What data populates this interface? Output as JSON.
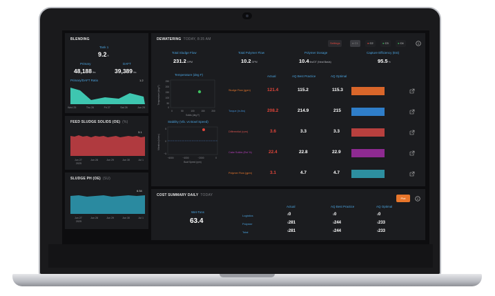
{
  "blending": {
    "title": "BLENDING",
    "tank_label": "Tank 1",
    "tank_value": "9.2",
    "tank_unit": "ft",
    "primary_label": "Primary",
    "primary_value": "48,188",
    "primary_unit": "lbs",
    "daft_label": "DAFT",
    "daft_value": "39,389",
    "daft_unit": "lbs",
    "ratio_label": "Primary/DAFT Ratio",
    "ratio_value": "1.2",
    "x_ticks": [
      "Wed 25",
      "Thu 26",
      "Fri 27",
      "Sat 28",
      "Jun 29"
    ]
  },
  "feed_solids": {
    "title": "FEED SLUDGE SOLIDS (OE)",
    "subtitle": "(%)",
    "value": "3.1",
    "x_ticks": [
      "Jun 27",
      "Jun 28",
      "Jun 29",
      "Jun 30",
      "Jul 1"
    ],
    "year": "2025"
  },
  "sludge_ph": {
    "title": "SLUDGE PH (OE)",
    "subtitle": "(SU)",
    "value": "6.54",
    "x_ticks": [
      "Jun 27",
      "Jun 28",
      "Jun 29",
      "Jun 30",
      "Jul 1"
    ],
    "year": "2025"
  },
  "dewatering": {
    "title": "DEWATERING",
    "subtitle": "TODAY, 8:35 AM",
    "settings_label": "Settings",
    "centrifuges": [
      "C1",
      "C2",
      "C3",
      "C4"
    ],
    "metrics": [
      {
        "label": "Total Sludge Flow",
        "value": "231.2",
        "unit": "GPM"
      },
      {
        "label": "Total Polymer Flow",
        "value": "10.2",
        "unit": "GPM"
      },
      {
        "label": "Polymer Dosage",
        "value": "10.4",
        "unit": "lbs/DT (Neat Basis)"
      },
      {
        "label": "Capture Efficiency (Est)",
        "value": "95.5",
        "unit": "%"
      }
    ],
    "temp_chart_title": "Temperature (deg F)",
    "temp_ylabel": "Temperature (deg F)",
    "temp_xlabel": "Solids (deg F)",
    "temp_x_ticks": [
      "0",
      "50",
      "100",
      "150",
      "200"
    ],
    "temp_y_ticks": [
      "250",
      "200",
      "150",
      "100",
      "50",
      "0"
    ],
    "stab_chart_title": "Stability (Vib. vs Bowl Speed)",
    "stab_ylabel": "Vibration (in/sec)",
    "stab_xlabel": "Bowl Speed (rpm)",
    "stab_x_ticks": [
      "−6000",
      "−4000",
      "−2000",
      "0"
    ],
    "stab_y_ticks": [
      "5",
      "0",
      "−5"
    ],
    "col_actual": "Actual",
    "col_best": "AQ Best Practice",
    "col_optimal": "AQ Optimal",
    "rows": [
      {
        "label": "Sludge Flow (gpm)",
        "label_color": "#e8762b",
        "actual": "121.4",
        "best": "115.2",
        "optimal": "115.3",
        "bar_color": "#d9662a"
      },
      {
        "label": "Torque (in-lbs)",
        "label_color": "#3f8fd6",
        "actual": "208.2",
        "best": "214.9",
        "optimal": "215",
        "bar_color": "#2f7ec9"
      },
      {
        "label": "Differential (rpm)",
        "label_color": "#d9534f",
        "actual": "3.6",
        "best": "3.3",
        "optimal": "3.3",
        "bar_color": "#b8403e"
      },
      {
        "label": "Cake Solids (Est %)",
        "label_color": "#b43fb9",
        "actual": "22.4",
        "best": "22.8",
        "optimal": "22.9",
        "bar_color": "#8e2a91"
      },
      {
        "label": "Polymer Flow (gpm)",
        "label_color": "#e8762b",
        "actual": "3.1",
        "best": "4.7",
        "optimal": "4.7",
        "bar_color": "#2d8fa0"
      }
    ]
  },
  "cost": {
    "title": "COST SUMMARY DAILY",
    "subtitle": "TODAY",
    "plot_label": "Plot",
    "wet_tons_label": "Wet-Tons",
    "wet_tons_value": "63.4",
    "col_actual": "Actual",
    "col_best": "AQ Best Practice",
    "col_optimal": "AQ Optimal",
    "rows": [
      {
        "label": "Logistics",
        "actual": "0",
        "best": "0",
        "optimal": "0"
      },
      {
        "label": "Polymer",
        "actual": "281",
        "best": "244",
        "optimal": "233"
      },
      {
        "label": "Total",
        "actual": "281",
        "best": "244",
        "optimal": "233"
      }
    ],
    "currency": "$"
  },
  "colors": {
    "accent_blue": "#4aa3df",
    "teal": "#3ec6b0",
    "feed_red": "#b03a3f",
    "ph_teal": "#2a8aa0",
    "orange": "#e8762b"
  }
}
